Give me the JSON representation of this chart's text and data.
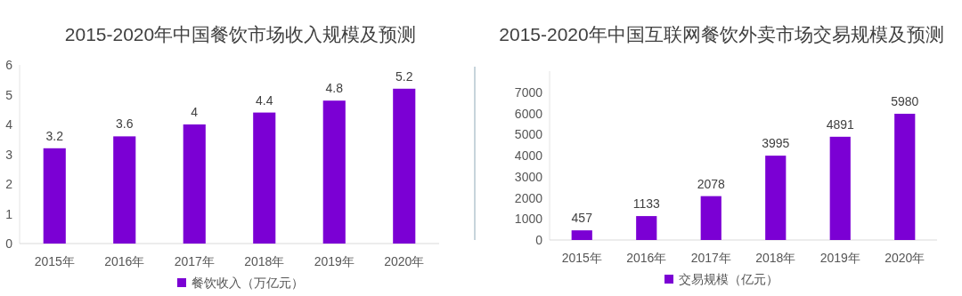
{
  "chart_data": [
    {
      "type": "bar",
      "title": "2015-2020年中国餐饮市场收入规模及预测",
      "categories": [
        "2015年",
        "2016年",
        "2017年",
        "2018年",
        "2019年",
        "2020年"
      ],
      "series": [
        {
          "name": "餐饮收入（万亿元）",
          "color": "#7b00d4",
          "values": [
            3.2,
            3.6,
            4,
            4.4,
            4.8,
            5.2
          ]
        }
      ],
      "ylim": [
        0,
        6
      ],
      "yticks": [
        0,
        1,
        2,
        3,
        4,
        5,
        6
      ],
      "grid": false,
      "data_labels": true,
      "legend": "bottom"
    },
    {
      "type": "bar",
      "title": "2015-2020年中国互联网餐饮外卖市场交易规模及预测",
      "categories": [
        "2015年",
        "2016年",
        "2017年",
        "2018年",
        "2019年",
        "2020年"
      ],
      "series": [
        {
          "name": "交易规模（亿元）",
          "color": "#7b00d4",
          "values": [
            457,
            1133,
            2078,
            3995,
            4891,
            5980
          ]
        }
      ],
      "ylim": [
        0,
        8000
      ],
      "yticks": [
        0,
        1000,
        2000,
        3000,
        4000,
        5000,
        6000,
        7000
      ],
      "grid": false,
      "data_labels": true,
      "legend": "bottom"
    }
  ]
}
